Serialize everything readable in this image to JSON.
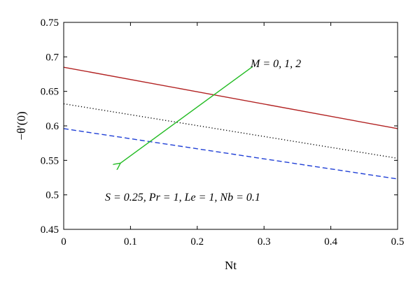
{
  "chart_data": {
    "type": "line",
    "xlabel": "Nt",
    "ylabel": "−θ′(0)",
    "xlim": [
      0,
      0.5
    ],
    "ylim": [
      0.45,
      0.75
    ],
    "xticks": [
      0,
      0.1,
      0.2,
      0.3,
      0.4,
      0.5
    ],
    "xtick_labels": [
      "0",
      "0.1",
      "0.2",
      "0.3",
      "0.4",
      "0.5"
    ],
    "yticks": [
      0.45,
      0.5,
      0.55,
      0.6,
      0.65,
      0.7,
      0.75
    ],
    "ytick_labels": [
      "0.45",
      "0.5",
      "0.55",
      "0.6",
      "0.65",
      "0.7",
      "0.75"
    ],
    "grid": false,
    "x": [
      0,
      0.5
    ],
    "series": [
      {
        "values": [
          0.685,
          0.596
        ],
        "color": "#b22222",
        "style": "solid"
      },
      {
        "values": [
          0.632,
          0.553
        ],
        "color": "#000000",
        "style": "dotted"
      },
      {
        "values": [
          0.596,
          0.523
        ],
        "color": "#1f3fd6",
        "style": "dashed"
      }
    ],
    "arrow": {
      "from": [
        0.283,
        0.686
      ],
      "to": [
        0.085,
        0.546
      ],
      "color": "#22bb22"
    },
    "annotations": {
      "m_label": "M = 0, 1, 2",
      "params_label": "S = 0.25, Pr = 1, Le = 1, Nb = 0.1"
    }
  }
}
